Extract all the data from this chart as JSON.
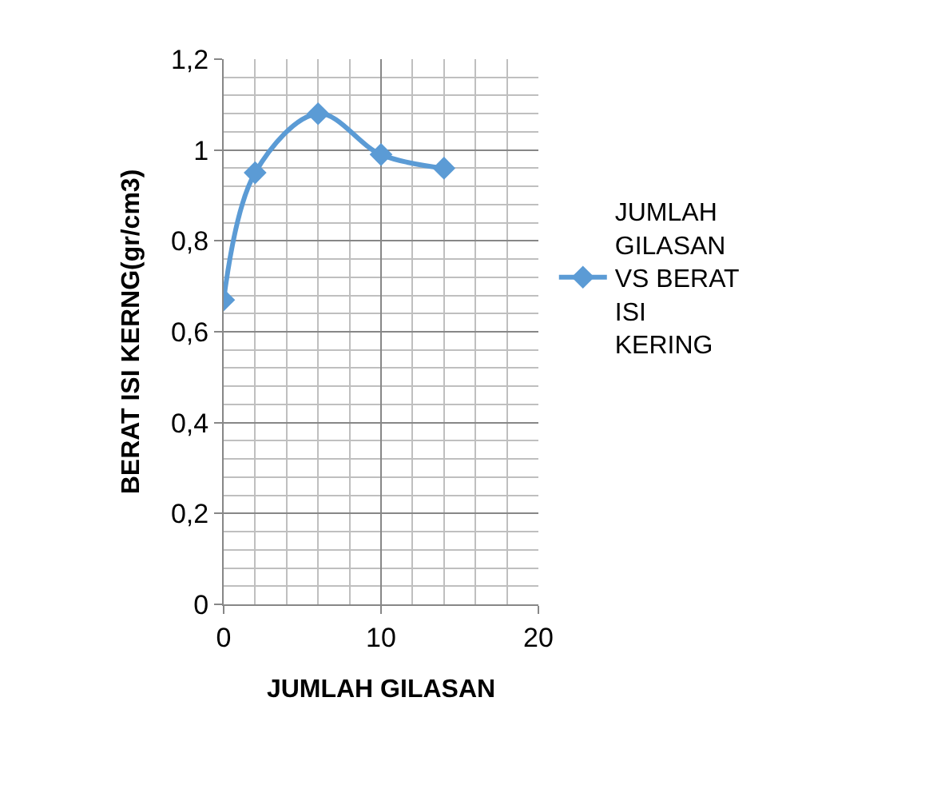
{
  "chart_data": {
    "type": "line",
    "xlabel": "JUMLAH GILASAN",
    "ylabel": "BERAT ISI KERNG(gr/cm3)",
    "x": [
      0,
      2,
      6,
      10,
      14
    ],
    "series": [
      {
        "name": "JUMLAH GILASAN VS BERAT ISI KERING",
        "color": "#5b9bd5",
        "values": [
          0.67,
          0.95,
          1.08,
          0.99,
          0.96
        ]
      }
    ],
    "xlim": [
      0,
      20
    ],
    "xticks": [
      0,
      10,
      20
    ],
    "ylim": [
      0,
      1.2
    ],
    "yticks": [
      0,
      {
        "value": 0.2,
        "label": "0,2"
      },
      {
        "value": 0.4,
        "label": "0,4"
      },
      {
        "value": 0.6,
        "label": "0,6"
      },
      {
        "value": 0.8,
        "label": "0,8"
      },
      1,
      {
        "value": 1.2,
        "label": "1,2"
      }
    ],
    "grid": true,
    "legend": "right",
    "marker": "diamond",
    "line_style": "solid"
  }
}
